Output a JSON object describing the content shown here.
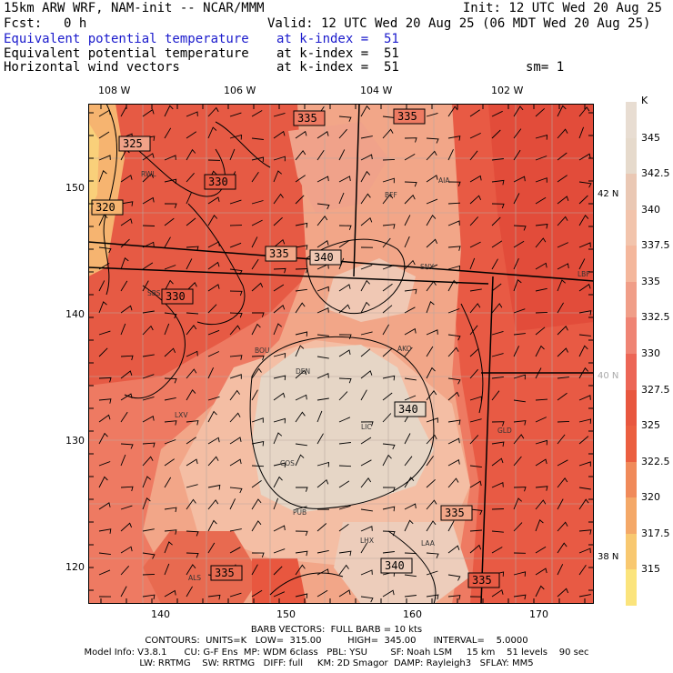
{
  "header": {
    "model": "15km ARW WRF, NAM-init -- NCAR/MMM",
    "init": "Init: 12 UTC Wed 20 Aug 25",
    "fcst_label": "Fcst:",
    "fcst_value": "0 h",
    "valid": "Valid: 12 UTC Wed 20 Aug 25 (06 MDT Wed 20 Aug 25)",
    "fields": [
      {
        "name": "Equivalent potential temperature",
        "level": "at k-index =  51"
      },
      {
        "name": "Equivalent potential temperature",
        "level": "at k-index =  51"
      },
      {
        "name": "Horizontal wind vectors",
        "level": "at k-index =  51"
      }
    ],
    "smoothing": "sm= 1"
  },
  "map": {
    "lon_labels": [
      "108 W",
      "106 W",
      "104 W",
      "102 W"
    ],
    "lat_labels": [
      "42 N",
      "40 N",
      "38 N"
    ],
    "x_ticks": [
      "140",
      "150",
      "160",
      "170"
    ],
    "y_ticks": [
      "150",
      "140",
      "130",
      "120"
    ],
    "contour_labels": [
      "325",
      "320",
      "330",
      "330",
      "335",
      "335",
      "335",
      "340",
      "340",
      "335",
      "340",
      "335",
      "335"
    ],
    "cities": [
      "RWL",
      "BFF",
      "AIA",
      "SNY",
      "SBS",
      "LBF",
      "BOU",
      "AKO",
      "DEN",
      "LIC",
      "GLD",
      "COS",
      "PUB",
      "LHX",
      "LAA",
      "ALS",
      "LXV"
    ]
  },
  "colorbar": {
    "unit": "K",
    "labels": [
      "345",
      "342.5",
      "340",
      "337.5",
      "335",
      "332.5",
      "330",
      "327.5",
      "325",
      "322.5",
      "320",
      "317.5",
      "315"
    ],
    "colors": [
      "#e6dacc",
      "#eac8b4",
      "#f2c4ac",
      "#f4b79c",
      "#f09e88",
      "#ef8474",
      "#ec6656",
      "#e8573f",
      "#eb5f40",
      "#f08a5a",
      "#f4a868",
      "#f8c870",
      "#fbe47c"
    ]
  },
  "footer": {
    "barb": "BARB VECTORS:  FULL BARB = 10 kts",
    "contours": "CONTOURS:  UNITS=K   LOW=  315.00         HIGH=  345.00      INTERVAL=    5.0000",
    "model_info": "Model Info: V3.8.1      CU: G-F Ens  MP: WDM 6class   PBL: YSU        SF: Noah LSM     15 km    51 levels    90 sec",
    "physics": "LW: RRTMG    SW: RRTMG   DIFF: full     KM: 2D Smagor  DAMP: Rayleigh3   SFLAY: MM5"
  }
}
